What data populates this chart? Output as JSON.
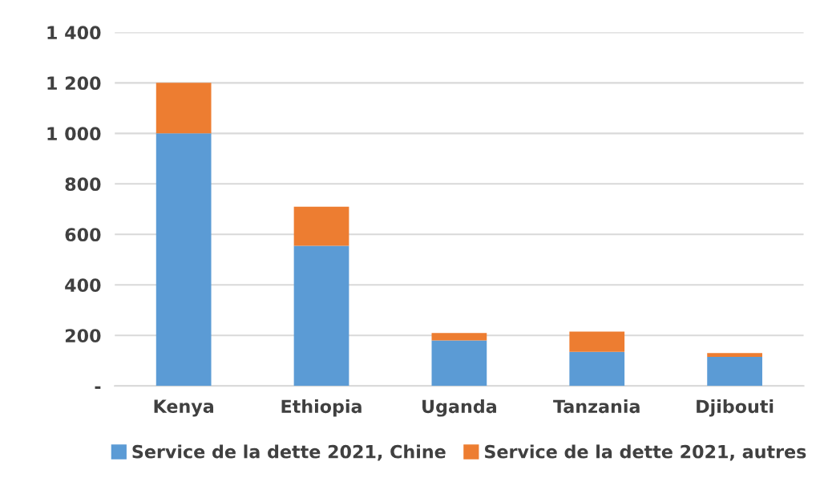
{
  "chart_data": {
    "type": "bar",
    "stacked": true,
    "categories": [
      "Kenya",
      "Ethiopia",
      "Uganda",
      "Tanzania",
      "Djibouti"
    ],
    "series": [
      {
        "name": "Service de la dette 2021, Chine",
        "color": "#5b9bd5",
        "values": [
          1000,
          555,
          180,
          135,
          115
        ]
      },
      {
        "name": "Service de la dette 2021, autres",
        "color": "#ed7d31",
        "values": [
          200,
          155,
          30,
          80,
          15
        ]
      }
    ],
    "ylim": [
      0,
      1400
    ],
    "yticks": [
      {
        "value": 0,
        "label": "-"
      },
      200,
      400,
      600,
      800,
      {
        "value": 1000,
        "label": "1 000"
      },
      {
        "value": 1200,
        "label": "1 200"
      },
      {
        "value": 1400,
        "label": "1 400"
      }
    ],
    "grid": "y",
    "legend": "bottom"
  }
}
